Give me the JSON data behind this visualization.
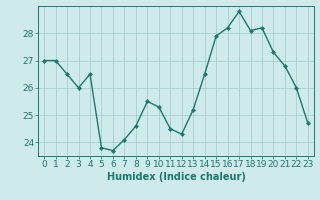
{
  "x": [
    0,
    1,
    2,
    3,
    4,
    5,
    6,
    7,
    8,
    9,
    10,
    11,
    12,
    13,
    14,
    15,
    16,
    17,
    18,
    19,
    20,
    21,
    22,
    23
  ],
  "y": [
    27.0,
    27.0,
    26.5,
    26.0,
    26.5,
    23.8,
    23.7,
    24.1,
    24.6,
    25.5,
    25.3,
    24.5,
    24.3,
    25.2,
    26.5,
    27.9,
    28.2,
    28.8,
    28.1,
    28.2,
    27.3,
    26.8,
    26.0,
    24.7
  ],
  "line_color": "#1a7a6e",
  "marker": "D",
  "marker_size": 2.0,
  "line_width": 1.0,
  "xlabel": "Humidex (Indice chaleur)",
  "xlim": [
    -0.5,
    23.5
  ],
  "ylim": [
    23.5,
    29.0
  ],
  "yticks": [
    24,
    25,
    26,
    27,
    28
  ],
  "xticks": [
    0,
    1,
    2,
    3,
    4,
    5,
    6,
    7,
    8,
    9,
    10,
    11,
    12,
    13,
    14,
    15,
    16,
    17,
    18,
    19,
    20,
    21,
    22,
    23
  ],
  "bg_color": "#ceeaea",
  "grid_color": "#aacece",
  "tick_color": "#1a7a6e",
  "label_color": "#1a7a6e",
  "xlabel_fontsize": 7,
  "tick_fontsize": 6.5
}
